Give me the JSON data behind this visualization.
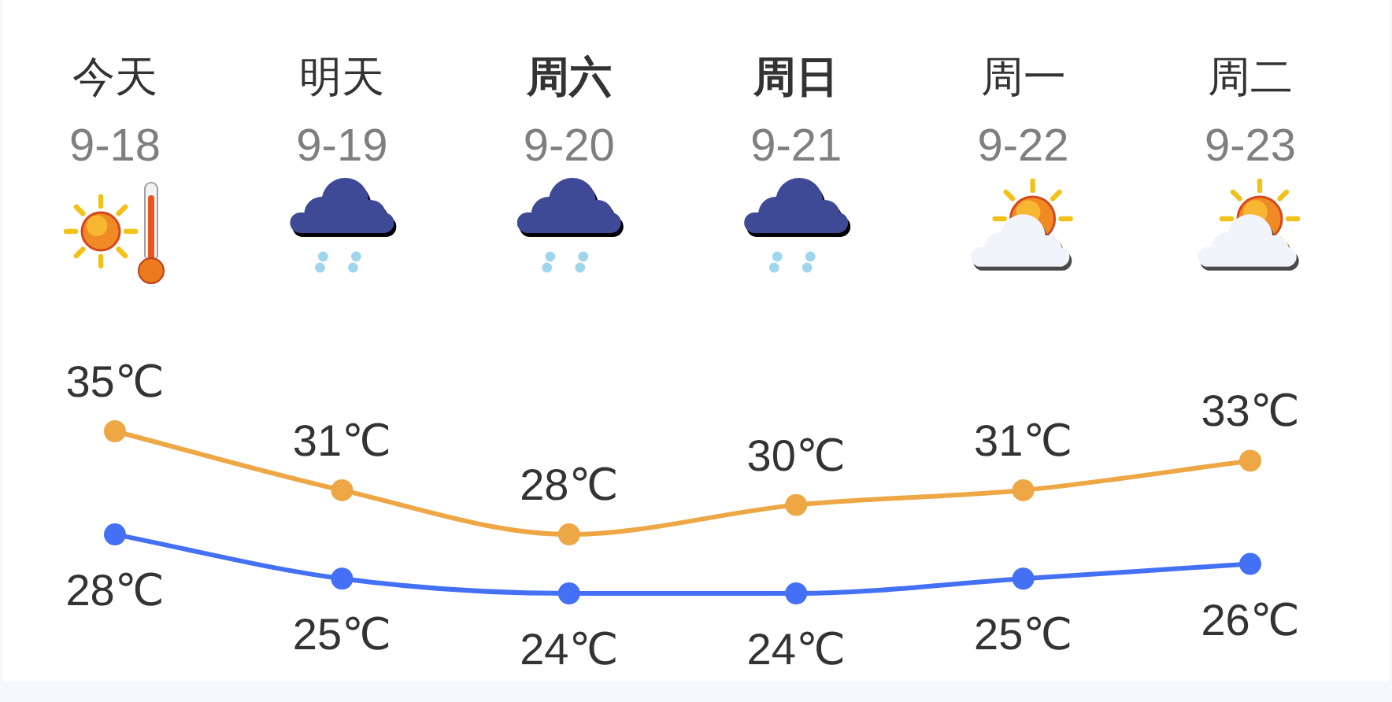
{
  "chart_data": {
    "type": "line",
    "categories": [
      "今天\n9-18",
      "明天\n9-19",
      "**周六**\n9-20",
      "**周日**\n9-21",
      "周一\n9-22",
      "周二\n9-23"
    ],
    "series": [
      {
        "color": "#eea745",
        "values": [
          35,
          31,
          28,
          30,
          31,
          33
        ],
        "value_labels": [
          "35℃",
          "31℃",
          "28℃",
          "30℃",
          "31℃",
          "33℃"
        ]
      },
      {
        "color": "#4470f5",
        "values": [
          28,
          25,
          24,
          24,
          25,
          26
        ],
        "value_labels": [
          "28℃",
          "25℃",
          "24℃",
          "24℃",
          "25℃",
          "26℃"
        ]
      }
    ],
    "marker": "circle",
    "line_style": "solid"
  }
}
